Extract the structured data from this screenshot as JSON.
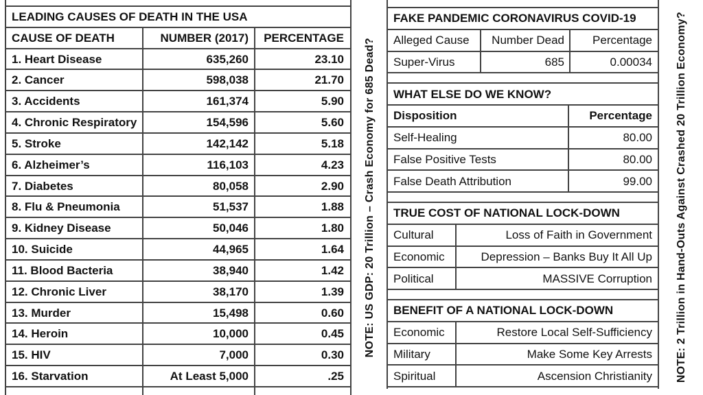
{
  "colors": {
    "background": "#ffffff",
    "border": "#424242",
    "text": "#111111"
  },
  "left_table": {
    "title": "LEADING CAUSES OF DEATH IN THE USA",
    "headers": {
      "cause": "CAUSE OF DEATH",
      "number": "NUMBER (2017)",
      "percentage": "PERCENTAGE"
    },
    "rows": [
      {
        "cause": "1. Heart Disease",
        "number": "635,260",
        "percentage": "23.10"
      },
      {
        "cause": "2. Cancer",
        "number": "598,038",
        "percentage": "21.70"
      },
      {
        "cause": "3. Accidents",
        "number": "161,374",
        "percentage": "5.90"
      },
      {
        "cause": "4. Chronic Respiratory",
        "number": "154,596",
        "percentage": "5.60"
      },
      {
        "cause": "5. Stroke",
        "number": "142,142",
        "percentage": "5.18"
      },
      {
        "cause": "6. Alzheimer’s",
        "number": "116,103",
        "percentage": "4.23"
      },
      {
        "cause": "7. Diabetes",
        "number": "80,058",
        "percentage": "2.90"
      },
      {
        "cause": "8. Flu & Pneumonia",
        "number": "51,537",
        "percentage": "1.88"
      },
      {
        "cause": "9. Kidney Disease",
        "number": "50,046",
        "percentage": "1.80"
      },
      {
        "cause": "10. Suicide",
        "number": "44,965",
        "percentage": "1.64"
      },
      {
        "cause": "11. Blood Bacteria",
        "number": "38,940",
        "percentage": "1.42"
      },
      {
        "cause": "12. Chronic Liver",
        "number": "38,170",
        "percentage": "1.39"
      },
      {
        "cause": "13. Murder",
        "number": "15,498",
        "percentage": "0.60"
      },
      {
        "cause": "14. Heroin",
        "number": "10,000",
        "percentage": "0.45"
      },
      {
        "cause": "15. HIV",
        "number": "7,000",
        "percentage": "0.30"
      },
      {
        "cause": "16. Starvation",
        "number": "At Least 5,000",
        "percentage": ".25"
      }
    ]
  },
  "covid_table": {
    "title": "FAKE PANDEMIC CORONAVIRUS COVID-19",
    "headers": {
      "cause": "Alleged Cause",
      "number": "Number Dead",
      "percentage": "Percentage"
    },
    "rows": [
      {
        "cause": "Super-Virus",
        "number": "685",
        "percentage": "0.00034"
      }
    ]
  },
  "know_table": {
    "title": "WHAT ELSE DO WE KNOW?",
    "headers": {
      "disposition": "Disposition",
      "percentage": "Percentage"
    },
    "rows": [
      {
        "disposition": "Self-Healing",
        "percentage": "80.00"
      },
      {
        "disposition": "False Positive Tests",
        "percentage": "80.00"
      },
      {
        "disposition": "False Death Attribution",
        "percentage": "99.00"
      }
    ]
  },
  "cost_table": {
    "title": "TRUE COST OF NATIONAL LOCK-DOWN",
    "rows": [
      {
        "label": "Cultural",
        "value": "Loss of Faith in Government"
      },
      {
        "label": "Economic",
        "value": "Depression – Banks Buy It All Up"
      },
      {
        "label": "Political",
        "value": "MASSIVE Corruption"
      }
    ]
  },
  "benefit_table": {
    "title": "BENEFIT OF A NATIONAL LOCK-DOWN",
    "rows": [
      {
        "label": "Economic",
        "value": "Restore Local Self-Sufficiency"
      },
      {
        "label": "Military",
        "value": "Make Some Key Arrests"
      },
      {
        "label": "Spiritual",
        "value": "Ascension Christianity"
      }
    ]
  },
  "notes": {
    "left_note": "NOTE: US GDP: 20 Trillion – Crash Economy for 685 Dead?",
    "right_note": "NOTE: 2 Trillion in Hand-Outs Against Crashed 20 Trillion Economy?"
  }
}
